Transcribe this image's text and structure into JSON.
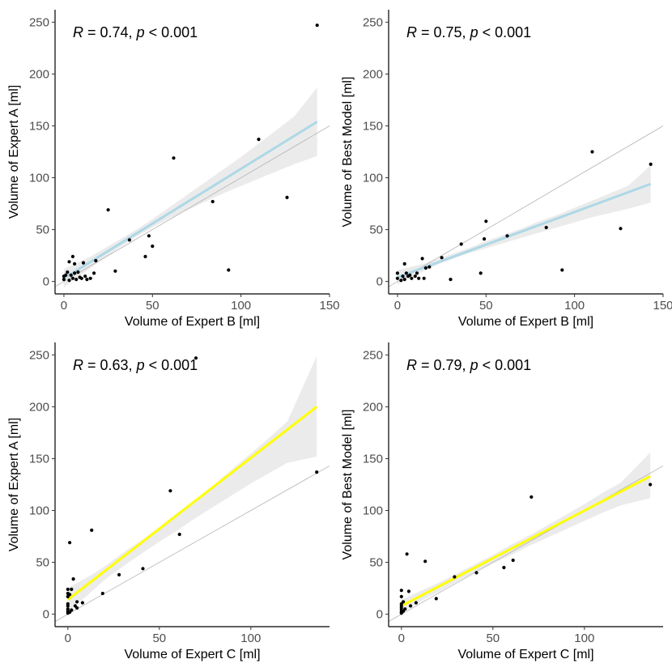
{
  "chart_data": [
    {
      "type": "scatter",
      "panel": "top-left",
      "xlabel": "Volume of Expert B [ml]",
      "ylabel": "Volume of Expert A [ml]",
      "annotation": {
        "r_symbol": "R",
        "r_text": " = 0.74, ",
        "p_symbol": "p",
        "p_text": " < 0.001"
      },
      "xlim": [
        -5,
        150
      ],
      "ylim": [
        -12,
        262
      ],
      "xticks": [
        0,
        50,
        100,
        150
      ],
      "xtick_labels": [
        "0",
        "50",
        "100",
        "150"
      ],
      "yticks": [
        0,
        50,
        100,
        150,
        200,
        250
      ],
      "ytick_labels": [
        "0",
        "50",
        "100",
        "150",
        "200",
        "250"
      ],
      "fit_color": "#add8e6",
      "fit": {
        "x": [
          0,
          143
        ],
        "y": [
          3,
          154
        ]
      },
      "band": {
        "x": [
          0,
          5,
          10,
          15,
          20,
          25,
          30,
          40,
          50,
          60,
          70,
          80,
          90,
          100,
          110,
          120,
          130,
          143
        ],
        "lower": [
          -6,
          1,
          7,
          13,
          19,
          25,
          31,
          42,
          52,
          61,
          69,
          77,
          85,
          92,
          99,
          106,
          113,
          121
        ],
        "upper": [
          12,
          16,
          20,
          24,
          29,
          34,
          39,
          49,
          60,
          72,
          84,
          96,
          108,
          120,
          133,
          146,
          159,
          187
        ]
      },
      "identity": {
        "x": [
          -5,
          150
        ],
        "y": [
          -5,
          150
        ]
      },
      "points": [
        {
          "x": 0,
          "y": 5
        },
        {
          "x": 0,
          "y": 2
        },
        {
          "x": 1,
          "y": 6
        },
        {
          "x": 2,
          "y": 9
        },
        {
          "x": 3,
          "y": 19
        },
        {
          "x": 3,
          "y": 1
        },
        {
          "x": 4,
          "y": 6
        },
        {
          "x": 5,
          "y": 24
        },
        {
          "x": 5,
          "y": 3
        },
        {
          "x": 6,
          "y": 17
        },
        {
          "x": 6,
          "y": 8
        },
        {
          "x": 7,
          "y": 2
        },
        {
          "x": 8,
          "y": 9
        },
        {
          "x": 9,
          "y": 4
        },
        {
          "x": 10,
          "y": 3
        },
        {
          "x": 11,
          "y": 18
        },
        {
          "x": 12,
          "y": 5
        },
        {
          "x": 13,
          "y": 2
        },
        {
          "x": 15,
          "y": 3
        },
        {
          "x": 17,
          "y": 8
        },
        {
          "x": 18,
          "y": 20
        },
        {
          "x": 25,
          "y": 69
        },
        {
          "x": 29,
          "y": 10
        },
        {
          "x": 37,
          "y": 40
        },
        {
          "x": 46,
          "y": 24
        },
        {
          "x": 48,
          "y": 44
        },
        {
          "x": 50,
          "y": 34
        },
        {
          "x": 62,
          "y": 119
        },
        {
          "x": 84,
          "y": 77
        },
        {
          "x": 93,
          "y": 11
        },
        {
          "x": 110,
          "y": 137
        },
        {
          "x": 126,
          "y": 81
        },
        {
          "x": 143,
          "y": 247
        }
      ]
    },
    {
      "type": "scatter",
      "panel": "top-right",
      "xlabel": "Volume of Expert B [ml]",
      "ylabel": "Volume of Best Model [ml]",
      "annotation": {
        "r_symbol": "R",
        "r_text": " = 0.75, ",
        "p_symbol": "p",
        "p_text": " < 0.001"
      },
      "xlim": [
        -5,
        150
      ],
      "ylim": [
        -12,
        262
      ],
      "xticks": [
        0,
        50,
        100,
        150
      ],
      "xtick_labels": [
        "0",
        "50",
        "100",
        "150"
      ],
      "yticks": [
        0,
        50,
        100,
        150,
        200,
        250
      ],
      "ytick_labels": [
        "0",
        "50",
        "100",
        "150",
        "200",
        "250"
      ],
      "fit_color": "#add8e6",
      "fit": {
        "x": [
          0,
          143
        ],
        "y": [
          4,
          94
        ]
      },
      "band": {
        "x": [
          0,
          5,
          10,
          15,
          20,
          25,
          30,
          40,
          50,
          60,
          70,
          80,
          90,
          100,
          110,
          120,
          130,
          143
        ],
        "lower": [
          -3,
          2,
          6,
          10,
          14,
          18,
          21,
          27,
          32,
          37,
          42,
          47,
          52,
          57,
          62,
          66,
          70,
          76
        ],
        "upper": [
          11,
          13,
          15,
          17,
          20,
          23,
          26,
          32,
          39,
          45,
          51,
          58,
          64,
          71,
          78,
          85,
          92,
          112
        ]
      },
      "identity": {
        "x": [
          -5,
          150
        ],
        "y": [
          -5,
          150
        ]
      },
      "points": [
        {
          "x": 0,
          "y": 8
        },
        {
          "x": 0,
          "y": 3
        },
        {
          "x": 2,
          "y": 1
        },
        {
          "x": 3,
          "y": 5
        },
        {
          "x": 4,
          "y": 17
        },
        {
          "x": 4,
          "y": 2
        },
        {
          "x": 5,
          "y": 8
        },
        {
          "x": 6,
          "y": 5
        },
        {
          "x": 7,
          "y": 6
        },
        {
          "x": 8,
          "y": 3
        },
        {
          "x": 10,
          "y": 5
        },
        {
          "x": 11,
          "y": 8
        },
        {
          "x": 12,
          "y": 3
        },
        {
          "x": 14,
          "y": 22
        },
        {
          "x": 15,
          "y": 3
        },
        {
          "x": 16,
          "y": 13
        },
        {
          "x": 18,
          "y": 14
        },
        {
          "x": 25,
          "y": 23
        },
        {
          "x": 30,
          "y": 2
        },
        {
          "x": 36,
          "y": 36
        },
        {
          "x": 47,
          "y": 8
        },
        {
          "x": 49,
          "y": 41
        },
        {
          "x": 50,
          "y": 58
        },
        {
          "x": 62,
          "y": 44
        },
        {
          "x": 84,
          "y": 52
        },
        {
          "x": 93,
          "y": 11
        },
        {
          "x": 110,
          "y": 125
        },
        {
          "x": 126,
          "y": 51
        },
        {
          "x": 143,
          "y": 113
        }
      ]
    },
    {
      "type": "scatter",
      "panel": "bottom-left",
      "xlabel": "Volume of Expert C [ml]",
      "ylabel": "Volume of Expert A [ml]",
      "annotation": {
        "r_symbol": "R",
        "r_text": " = 0.63, ",
        "p_symbol": "p",
        "p_text": " < 0.001"
      },
      "xlim": [
        -7,
        143
      ],
      "ylim": [
        -12,
        262
      ],
      "xticks": [
        0,
        50,
        100
      ],
      "xtick_labels": [
        "0",
        "50",
        "100"
      ],
      "yticks": [
        0,
        50,
        100,
        150,
        200,
        250
      ],
      "ytick_labels": [
        "0",
        "50",
        "100",
        "150",
        "200",
        "250"
      ],
      "fit_color": "#ffff00",
      "fit": {
        "x": [
          0,
          136
        ],
        "y": [
          14,
          200
        ]
      },
      "band": {
        "x": [
          0,
          5,
          10,
          15,
          20,
          30,
          40,
          50,
          60,
          70,
          80,
          90,
          100,
          110,
          120,
          136
        ],
        "lower": [
          2,
          10,
          17,
          25,
          33,
          46,
          58,
          70,
          81,
          93,
          104,
          115,
          126,
          136,
          146,
          152
        ],
        "upper": [
          25,
          30,
          35,
          40,
          46,
          59,
          71,
          84,
          98,
          111,
          125,
          140,
          155,
          170,
          186,
          249
        ]
      },
      "identity": {
        "x": [
          -7,
          143
        ],
        "y": [
          -7,
          143
        ]
      },
      "points": [
        {
          "x": 0,
          "y": 1
        },
        {
          "x": 0,
          "y": 3
        },
        {
          "x": 0,
          "y": 5
        },
        {
          "x": 0,
          "y": 8
        },
        {
          "x": 0,
          "y": 10
        },
        {
          "x": 0,
          "y": 17
        },
        {
          "x": 0,
          "y": 20
        },
        {
          "x": 0,
          "y": 24
        },
        {
          "x": 1,
          "y": 2
        },
        {
          "x": 1,
          "y": 19
        },
        {
          "x": 1,
          "y": 69
        },
        {
          "x": 2,
          "y": 4
        },
        {
          "x": 2,
          "y": 24
        },
        {
          "x": 3,
          "y": 34
        },
        {
          "x": 4,
          "y": 8
        },
        {
          "x": 5,
          "y": 6
        },
        {
          "x": 5,
          "y": 12
        },
        {
          "x": 8,
          "y": 11
        },
        {
          "x": 13,
          "y": 81
        },
        {
          "x": 19,
          "y": 20
        },
        {
          "x": 28,
          "y": 38
        },
        {
          "x": 41,
          "y": 44
        },
        {
          "x": 56,
          "y": 119
        },
        {
          "x": 61,
          "y": 77
        },
        {
          "x": 70,
          "y": 247
        },
        {
          "x": 136,
          "y": 137
        }
      ]
    },
    {
      "type": "scatter",
      "panel": "bottom-right",
      "xlabel": "Volume of Expert C [ml]",
      "ylabel": "Volume of Best Model [ml]",
      "annotation": {
        "r_symbol": "R",
        "r_text": " = 0.79, ",
        "p_symbol": "p",
        "p_text": " < 0.001"
      },
      "xlim": [
        -7,
        143
      ],
      "ylim": [
        -12,
        262
      ],
      "xticks": [
        0,
        50,
        100
      ],
      "xtick_labels": [
        "0",
        "50",
        "100"
      ],
      "yticks": [
        0,
        50,
        100,
        150,
        200,
        250
      ],
      "ytick_labels": [
        "0",
        "50",
        "100",
        "150",
        "200",
        "250"
      ],
      "fit_color": "#ffff00",
      "fit": {
        "x": [
          0,
          136
        ],
        "y": [
          8,
          133
        ]
      },
      "band": {
        "x": [
          0,
          5,
          10,
          15,
          20,
          30,
          40,
          50,
          60,
          70,
          80,
          90,
          100,
          110,
          120,
          136
        ],
        "lower": [
          2,
          7,
          12,
          17,
          21,
          31,
          40,
          49,
          57,
          66,
          74,
          82,
          90,
          98,
          105,
          112
        ],
        "upper": [
          14,
          18,
          22,
          26,
          30,
          39,
          48,
          57,
          67,
          76,
          86,
          96,
          106,
          117,
          127,
          156
        ]
      },
      "identity": {
        "x": [
          -7,
          143
        ],
        "y": [
          -7,
          143
        ]
      },
      "points": [
        {
          "x": 0,
          "y": 1
        },
        {
          "x": 0,
          "y": 2
        },
        {
          "x": 0,
          "y": 4
        },
        {
          "x": 0,
          "y": 6
        },
        {
          "x": 0,
          "y": 8
        },
        {
          "x": 0,
          "y": 10
        },
        {
          "x": 0,
          "y": 17
        },
        {
          "x": 0,
          "y": 23
        },
        {
          "x": 1,
          "y": 3
        },
        {
          "x": 1,
          "y": 12
        },
        {
          "x": 2,
          "y": 5
        },
        {
          "x": 3,
          "y": 58
        },
        {
          "x": 4,
          "y": 22
        },
        {
          "x": 5,
          "y": 8
        },
        {
          "x": 8,
          "y": 11
        },
        {
          "x": 13,
          "y": 51
        },
        {
          "x": 19,
          "y": 15
        },
        {
          "x": 29,
          "y": 36
        },
        {
          "x": 41,
          "y": 40
        },
        {
          "x": 56,
          "y": 45
        },
        {
          "x": 61,
          "y": 52
        },
        {
          "x": 71,
          "y": 113
        },
        {
          "x": 136,
          "y": 125
        }
      ]
    }
  ]
}
